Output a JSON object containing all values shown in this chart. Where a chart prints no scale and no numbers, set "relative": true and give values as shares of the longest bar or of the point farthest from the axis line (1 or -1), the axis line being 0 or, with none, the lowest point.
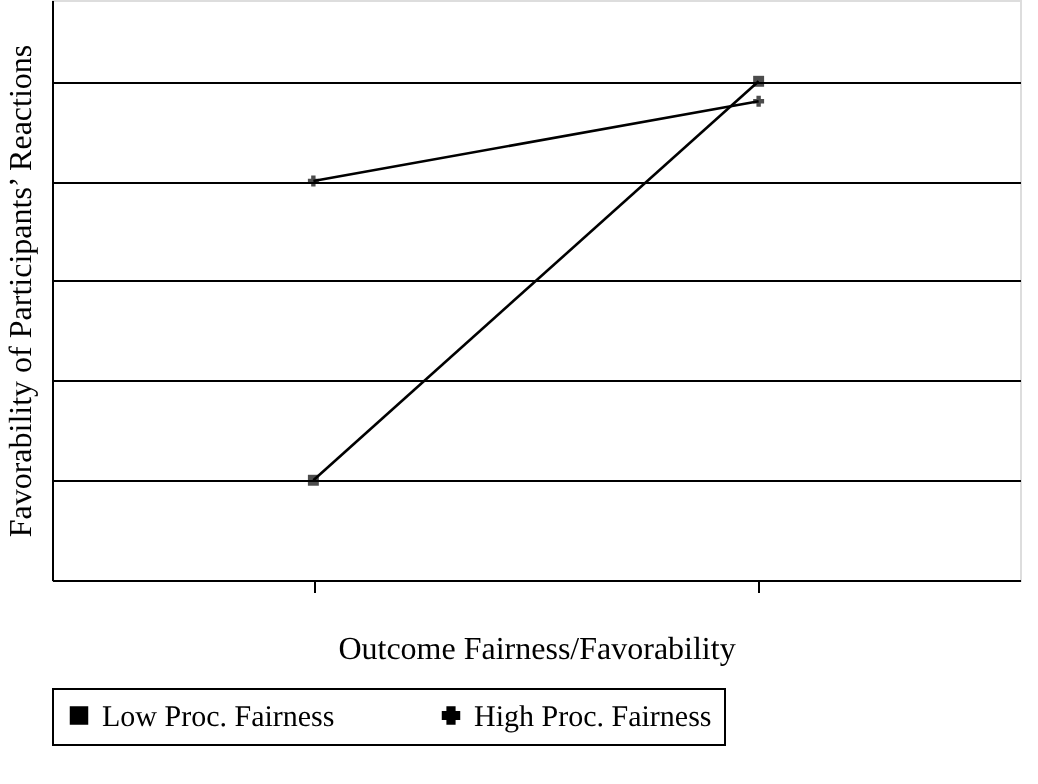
{
  "chart_data": {
    "type": "line",
    "relative": true,
    "xlabel": "Outcome Fairness/Favorability",
    "ylabel": "Favorability of Participants’ Reactions",
    "categories": [
      null,
      null
    ],
    "series": [
      {
        "name": "Low Proc. Fairness",
        "color": "#000000",
        "values": [
          0.2,
          1.0
        ],
        "marker": "square"
      },
      {
        "name": "High Proc. Fairness",
        "color": "#000000",
        "values": [
          0.8,
          0.96
        ],
        "marker": "cross"
      }
    ],
    "grid": "y",
    "legend": "bottom",
    "line_style": "solid"
  }
}
